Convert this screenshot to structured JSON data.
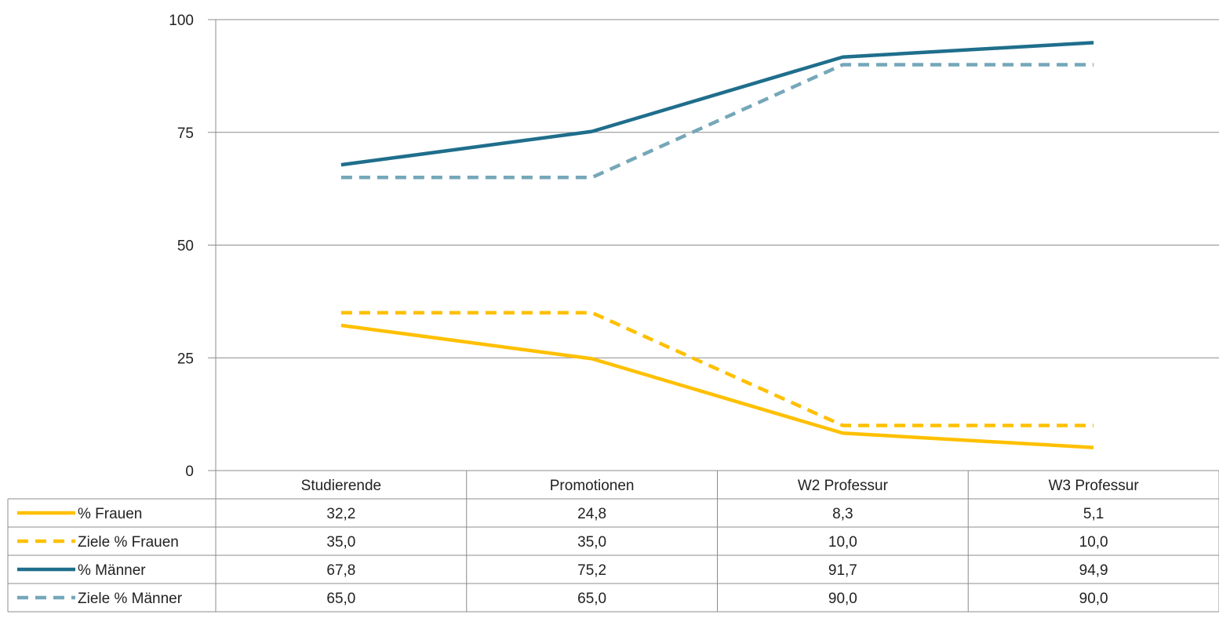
{
  "chart_data": {
    "type": "line",
    "categories": [
      "Studierende",
      "Promotionen",
      "W2 Professur",
      "W3 Professur"
    ],
    "ylim": [
      0,
      100
    ],
    "yticks": [
      0,
      25,
      50,
      75,
      100
    ],
    "grid": true,
    "legend": "data-table-left",
    "series": [
      {
        "name": "% Frauen",
        "values": [
          32.2,
          24.8,
          8.3,
          5.1
        ],
        "labels": [
          "32,2",
          "24,8",
          "8,3",
          "5,1"
        ],
        "color": "#FFC000",
        "dashed": false
      },
      {
        "name": "Ziele % Frauen",
        "values": [
          35.0,
          35.0,
          10.0,
          10.0
        ],
        "labels": [
          "35,0",
          "35,0",
          "10,0",
          "10,0"
        ],
        "color": "#FFC000",
        "dashed": true
      },
      {
        "name": "% Männer",
        "values": [
          67.8,
          75.2,
          91.7,
          94.9
        ],
        "labels": [
          "67,8",
          "75,2",
          "91,7",
          "94,9"
        ],
        "color": "#1F6E8C",
        "dashed": false
      },
      {
        "name": "Ziele % Männer",
        "values": [
          65.0,
          65.0,
          90.0,
          90.0
        ],
        "labels": [
          "65,0",
          "65,0",
          "90,0",
          "90,0"
        ],
        "color": "#75A7B9",
        "dashed": true
      }
    ]
  }
}
